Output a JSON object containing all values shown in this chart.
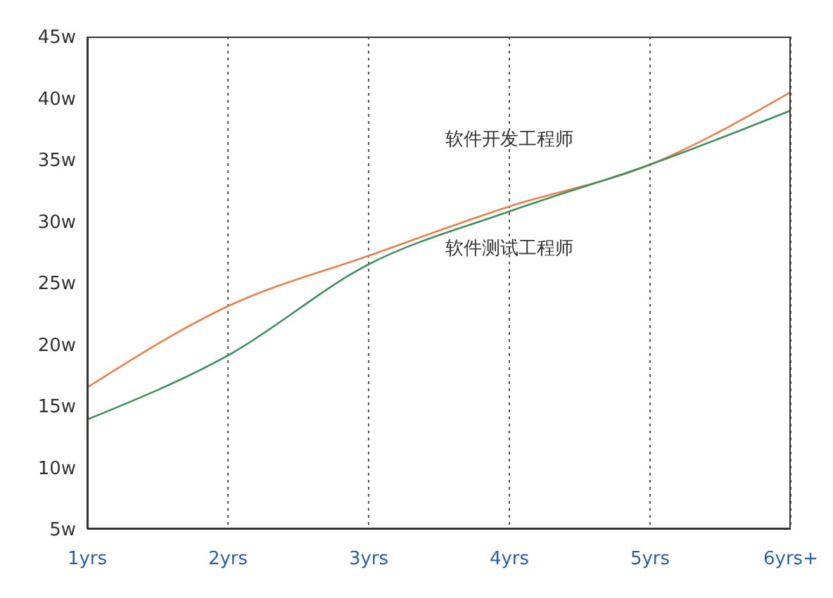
{
  "chart_data": {
    "type": "line",
    "categories": [
      "1yrs",
      "2yrs",
      "3yrs",
      "4yrs",
      "5yrs",
      "6yrs+"
    ],
    "series": [
      {
        "name": "软件开发工程师",
        "color": "#e8804a",
        "values": [
          16.5,
          23.1,
          27.2,
          31.2,
          34.6,
          40.5
        ]
      },
      {
        "name": "软件测试工程师",
        "color": "#3f8f5f",
        "values": [
          13.9,
          19.1,
          26.5,
          30.8,
          34.6,
          39.0
        ]
      }
    ],
    "ylim": [
      5,
      45
    ],
    "yticks": [
      {
        "value": 5,
        "label": "5w"
      },
      {
        "value": 10,
        "label": "10w"
      },
      {
        "value": 15,
        "label": "15w"
      },
      {
        "value": 20,
        "label": "20w"
      },
      {
        "value": 25,
        "label": "25w"
      },
      {
        "value": 30,
        "label": "30w"
      },
      {
        "value": 35,
        "label": "35w"
      },
      {
        "value": 40,
        "label": "40w"
      },
      {
        "value": 45,
        "label": "45w"
      }
    ],
    "grid": "x",
    "marker": "none",
    "line_style": "solid"
  }
}
